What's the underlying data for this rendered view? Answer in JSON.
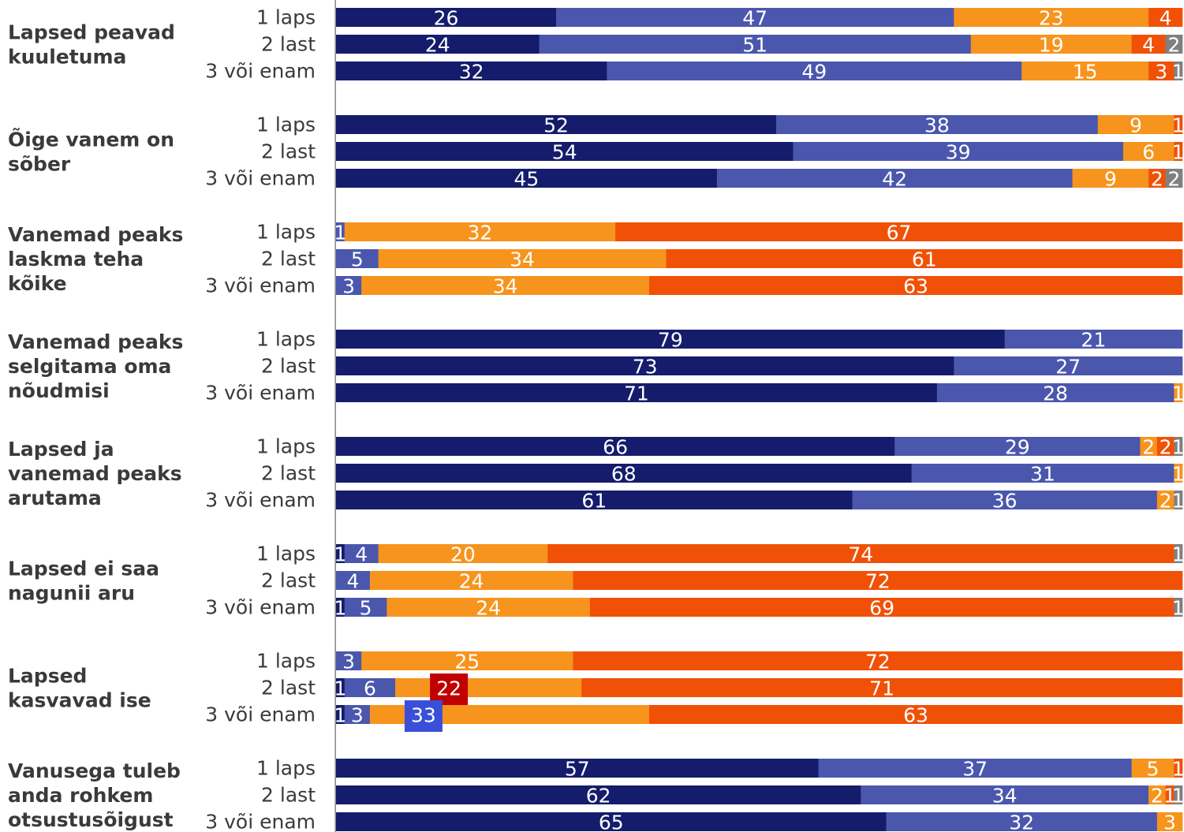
{
  "chart_data": {
    "type": "bar",
    "orientation": "horizontal",
    "stacked": true,
    "xlim": [
      0,
      100
    ],
    "series_colors": [
      "#141c6b",
      "#4b57ad",
      "#f7941d",
      "#f05107",
      "#808080"
    ],
    "groups": [
      {
        "label": "Lapsed peavad kuuletuma",
        "label_lines": [
          "Lapsed peavad",
          "kuuletuma"
        ],
        "rows": [
          {
            "label": "1 laps",
            "values": [
              26,
              47,
              23,
              4
            ]
          },
          {
            "label": "2 last",
            "values": [
              24,
              51,
              19,
              4,
              2
            ]
          },
          {
            "label": "3 või enam",
            "values": [
              32,
              49,
              15,
              3,
              1
            ]
          }
        ]
      },
      {
        "label": "Õige vanem on sõber",
        "label_lines": [
          "Õige vanem on",
          "sõber"
        ],
        "rows": [
          {
            "label": "1 laps",
            "values": [
              52,
              38,
              9,
              1
            ]
          },
          {
            "label": "2 last",
            "values": [
              54,
              39,
              6,
              1
            ]
          },
          {
            "label": "3 või enam",
            "values": [
              45,
              42,
              9,
              2,
              2
            ]
          }
        ]
      },
      {
        "label": "Vanemad peaks laskma teha kõike",
        "label_lines": [
          "Vanemad peaks",
          "laskma teha",
          "kõike"
        ],
        "rows": [
          {
            "label": "1 laps",
            "values": [
              0,
              1,
              32,
              67
            ]
          },
          {
            "label": "2 last",
            "values": [
              0,
              5,
              34,
              61
            ]
          },
          {
            "label": "3 või enam",
            "values": [
              0,
              3,
              34,
              63
            ]
          }
        ]
      },
      {
        "label": "Vanemad peaks selgitama oma nõudmisi",
        "label_lines": [
          "Vanemad peaks",
          "selgitama oma",
          "nõudmisi"
        ],
        "rows": [
          {
            "label": "1 laps",
            "values": [
              79,
              21
            ]
          },
          {
            "label": "2 last",
            "values": [
              73,
              27
            ]
          },
          {
            "label": "3 või enam",
            "values": [
              71,
              28,
              1
            ]
          }
        ]
      },
      {
        "label": "Lapsed ja vanemad peaks arutama",
        "label_lines": [
          "Lapsed ja",
          "vanemad peaks",
          "arutama"
        ],
        "rows": [
          {
            "label": "1 laps",
            "values": [
              66,
              29,
              2,
              2,
              1
            ]
          },
          {
            "label": "2 last",
            "values": [
              68,
              31,
              1
            ]
          },
          {
            "label": "3 või enam",
            "values": [
              61,
              36,
              2,
              0,
              1
            ]
          }
        ]
      },
      {
        "label": "Lapsed ei saa nagunii aru",
        "label_lines": [
          "Lapsed ei saa",
          "nagunii aru"
        ],
        "rows": [
          {
            "label": "1 laps",
            "values": [
              1,
              4,
              20,
              74,
              1
            ]
          },
          {
            "label": "2 last",
            "values": [
              0,
              4,
              24,
              72
            ]
          },
          {
            "label": "3 või enam",
            "values": [
              1,
              5,
              24,
              69,
              1
            ]
          }
        ]
      },
      {
        "label": "Lapsed kasvavad ise",
        "label_lines": [
          "Lapsed",
          "kasvavad ise"
        ],
        "rows": [
          {
            "label": "1 laps",
            "values": [
              0,
              3,
              25,
              72
            ]
          },
          {
            "label": "2 last",
            "values": [
              1,
              6,
              22,
              71
            ],
            "highlight": {
              "index": 2,
              "color": "#c00000"
            }
          },
          {
            "label": "3 või enam",
            "values": [
              1,
              3,
              33,
              63
            ],
            "highlight": {
              "index": 2,
              "color": "#3a4fd8"
            }
          }
        ]
      },
      {
        "label": "Vanusega tuleb anda rohkem otsustusõigust",
        "label_lines": [
          "Vanusega tuleb",
          "anda rohkem",
          "otsustusõigust"
        ],
        "rows": [
          {
            "label": "1 laps",
            "values": [
              57,
              37,
              5,
              1
            ]
          },
          {
            "label": "2 last",
            "values": [
              62,
              34,
              2,
              1,
              1
            ]
          },
          {
            "label": "3 või enam",
            "values": [
              65,
              32,
              3
            ]
          }
        ]
      }
    ]
  }
}
